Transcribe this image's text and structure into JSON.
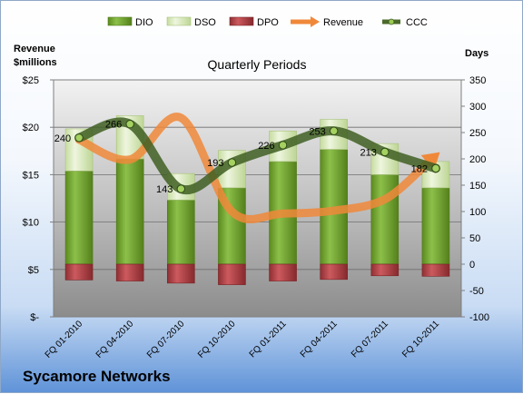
{
  "chart_data": {
    "type": "bar",
    "title": "Quarterly Periods",
    "company": "Sycamore Networks",
    "categories": [
      "FQ 01-2010",
      "FQ 04-2010",
      "FQ 07-2010",
      "FQ 10-2010",
      "FQ 01-2011",
      "FQ 04-2011",
      "FQ 07-2011",
      "FQ 10-2011"
    ],
    "y_left": {
      "label_line1": "Revenue",
      "label_line2": "$millions",
      "range": [
        0,
        25
      ],
      "ticks": [
        0,
        5,
        10,
        15,
        20,
        25
      ],
      "tick_labels": [
        "$-",
        "$5",
        "$10",
        "$15",
        "$20",
        "$25"
      ]
    },
    "y_right": {
      "label": "Days",
      "range": [
        -100,
        350
      ],
      "ticks": [
        -100,
        -50,
        0,
        50,
        100,
        150,
        200,
        250,
        300,
        350
      ],
      "tick_labels": [
        "-100",
        "-50",
        "0",
        "50",
        "100",
        "150",
        "200",
        "250",
        "300",
        "350"
      ]
    },
    "legend": {
      "placement": "top",
      "entries": [
        "DIO",
        "DSO",
        "DPO",
        "Revenue",
        "CCC"
      ]
    },
    "series": [
      {
        "name": "DIO",
        "type": "stacked-bar",
        "axis": "right",
        "values": [
          177,
          200,
          122,
          145,
          195,
          218,
          170,
          145
        ],
        "color": "#6e9d28"
      },
      {
        "name": "DSO",
        "type": "stacked-bar",
        "axis": "right",
        "values": [
          80,
          82,
          50,
          71,
          58,
          57,
          59,
          50
        ],
        "color": "#dcebc0"
      },
      {
        "name": "DPO",
        "type": "bar",
        "axis": "right",
        "values": [
          -30,
          -32,
          -36,
          -39,
          -32,
          -29,
          -22,
          -23
        ],
        "color": "#b0474a"
      },
      {
        "name": "Revenue",
        "type": "line",
        "axis": "left",
        "values": [
          18.7,
          16.6,
          21.0,
          11.1,
          10.9,
          11.2,
          12.4,
          17.0
        ],
        "color": "#f0883a"
      },
      {
        "name": "CCC",
        "type": "line",
        "axis": "right",
        "values": [
          240,
          266,
          143,
          193,
          226,
          253,
          213,
          182
        ],
        "data_labels": [
          "240",
          "266",
          "143",
          "193",
          "226",
          "253",
          "213",
          "182"
        ],
        "color": "#4a6a2a"
      }
    ],
    "grid": true
  }
}
